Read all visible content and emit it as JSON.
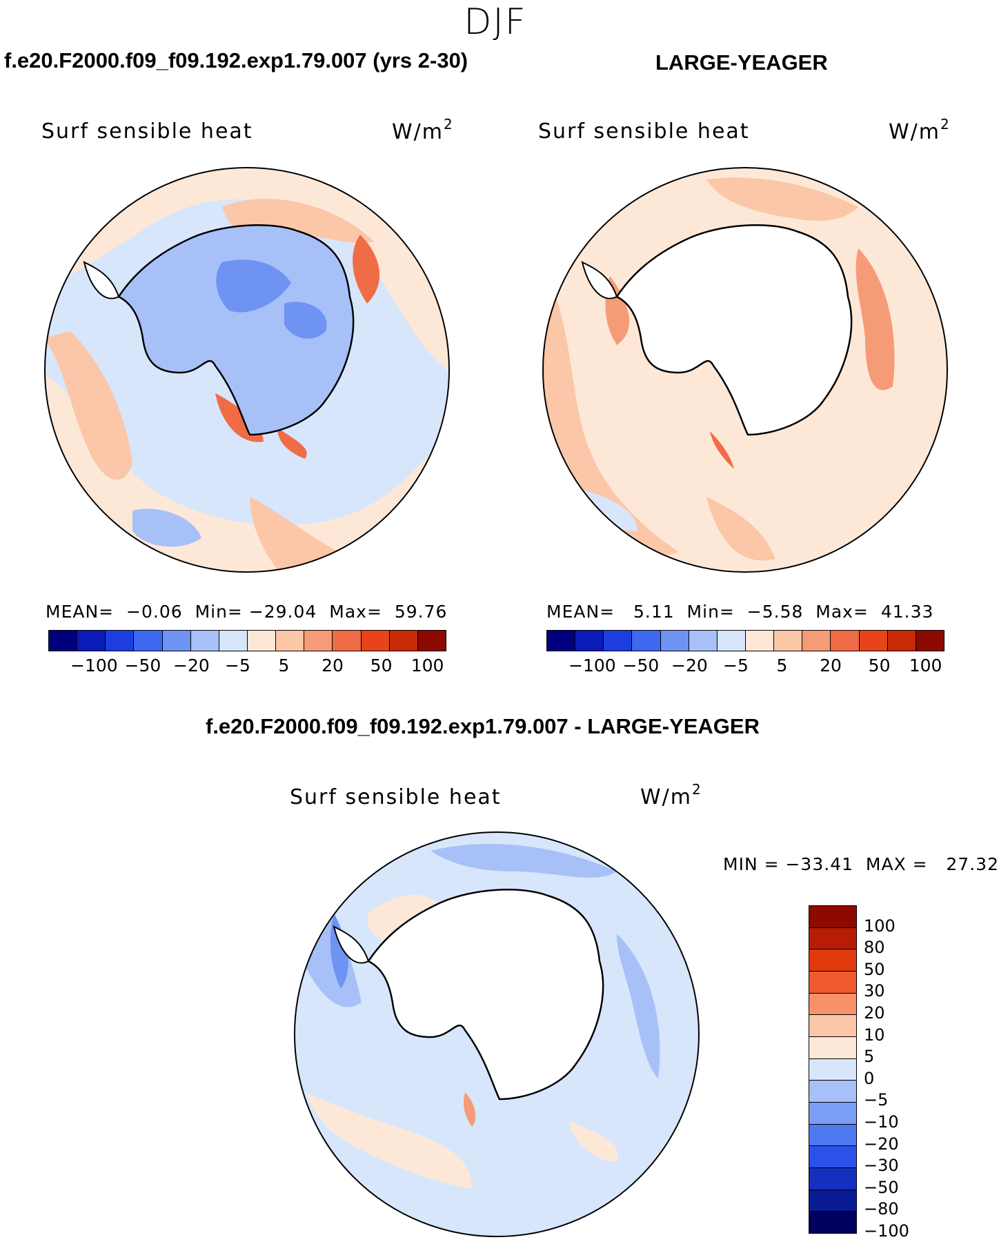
{
  "figure": {
    "season": "DJF",
    "case_title": "f.e20.F2000.f09_f09.192.exp1.79.007 (yrs 2-30)",
    "obs_title": "LARGE-YEAGER",
    "diff_title": "f.e20.F2000.f09_f09.192.exp1.79.007 - LARGE-YEAGER"
  },
  "panels": {
    "model": {
      "label": "Surf sensible heat",
      "units": "W/m",
      "units_exp": "2",
      "mean_label": "MEAN=",
      "mean": "−0.06",
      "min_label": "Min=",
      "min": "−29.04",
      "max_label": "Max=",
      "max": "59.76"
    },
    "obs": {
      "label": "Surf sensible heat",
      "units": "W/m",
      "units_exp": "2",
      "mean_label": "MEAN=",
      "mean": "5.11",
      "min_label": "Min=",
      "min": "−5.58",
      "max_label": "Max=",
      "max": "41.33"
    },
    "diff": {
      "label": "Surf sensible heat",
      "units": "W/m",
      "units_exp": "2",
      "minmax": "MIN = −33.41  MAX =   27.32"
    }
  },
  "colorbar_horizontal": {
    "colors": [
      "#00007f",
      "#0a1bb8",
      "#1c3ee0",
      "#3f68f0",
      "#6f93f3",
      "#a8c0f8",
      "#d7e6fb",
      "#fde8d8",
      "#fbc7a8",
      "#f69b77",
      "#f06c46",
      "#e84419",
      "#c82a08",
      "#8c0a00"
    ],
    "ticks": [
      "−100",
      "−50",
      "−20",
      "−5",
      "5",
      "20",
      "50",
      "100"
    ]
  },
  "colorbar_vertical": {
    "colors": [
      "#8c0a00",
      "#b81c04",
      "#e03a0c",
      "#f05a2e",
      "#f6916a",
      "#fbc7a8",
      "#fde8d8",
      "#d7e6fb",
      "#a8c0f8",
      "#7a9ef5",
      "#4f78f0",
      "#2b52e8",
      "#1530c0",
      "#0a1a94",
      "#00005f"
    ],
    "ticks": [
      "100",
      "80",
      "50",
      "30",
      "20",
      "10",
      "5",
      "0",
      "−5",
      "−10",
      "−20",
      "−30",
      "−50",
      "−80",
      "−100"
    ]
  },
  "map_colors": {
    "land_white": "#ffffff",
    "neg_light": "#d7e6fb",
    "neg_mid": "#a8c0f8",
    "neg_strong": "#6f93f3",
    "pos_light": "#fde8d8",
    "pos_mid": "#fbc7a8",
    "pos_strong": "#f69b77",
    "pos_hot": "#f06c46"
  }
}
